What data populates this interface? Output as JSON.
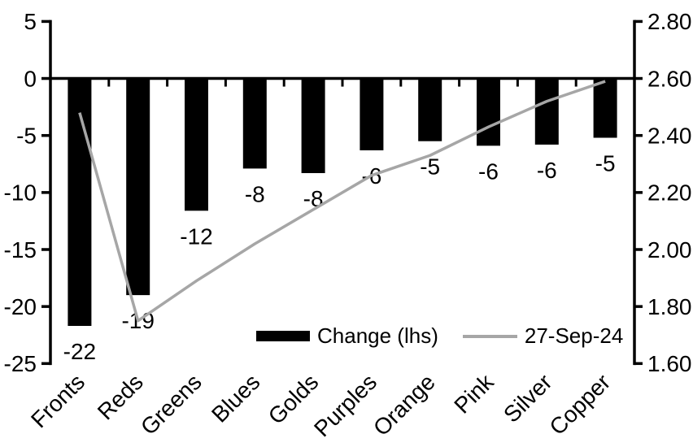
{
  "chart_data": {
    "type": "combo",
    "title": "",
    "categories": [
      "Fronts",
      "Reds",
      "Greens",
      "Blues",
      "Golds",
      "Purples",
      "Orange",
      "Pink",
      "Silver",
      "Copper"
    ],
    "series": [
      {
        "name": "Change (lhs)",
        "type": "bar",
        "axis": "left",
        "color": "#000000",
        "values": [
          -22,
          -19,
          -12,
          -8,
          -8,
          -6,
          -5,
          -6,
          -6,
          -5
        ],
        "values_precise": [
          -21.7,
          -19.0,
          -11.6,
          -7.9,
          -8.3,
          -6.3,
          -5.5,
          -5.9,
          -5.8,
          -5.2
        ],
        "data_labels": [
          "-22",
          "-19",
          "-12",
          "-8",
          "-8",
          "-6",
          "-5",
          "-6",
          "-6",
          "-5"
        ]
      },
      {
        "name": "27-Sep-24",
        "type": "line",
        "axis": "right",
        "color": "#a6a6a6",
        "values": [
          2.48,
          1.75,
          1.89,
          2.02,
          2.14,
          2.26,
          2.33,
          2.43,
          2.52,
          2.59
        ]
      }
    ],
    "left_axis": {
      "min": -25,
      "max": 5,
      "step": 5,
      "tick_labels": [
        "5",
        "0",
        "-5",
        "-10",
        "-15",
        "-20",
        "-25"
      ]
    },
    "right_axis": {
      "min": 1.6,
      "max": 2.8,
      "step": 0.2,
      "tick_labels": [
        "2.80",
        "2.60",
        "2.40",
        "2.20",
        "2.00",
        "1.80",
        "1.60"
      ]
    },
    "legend": {
      "position": "bottom-inside"
    },
    "grid": "off",
    "background": "#ffffff",
    "axis_color": "#000000"
  }
}
